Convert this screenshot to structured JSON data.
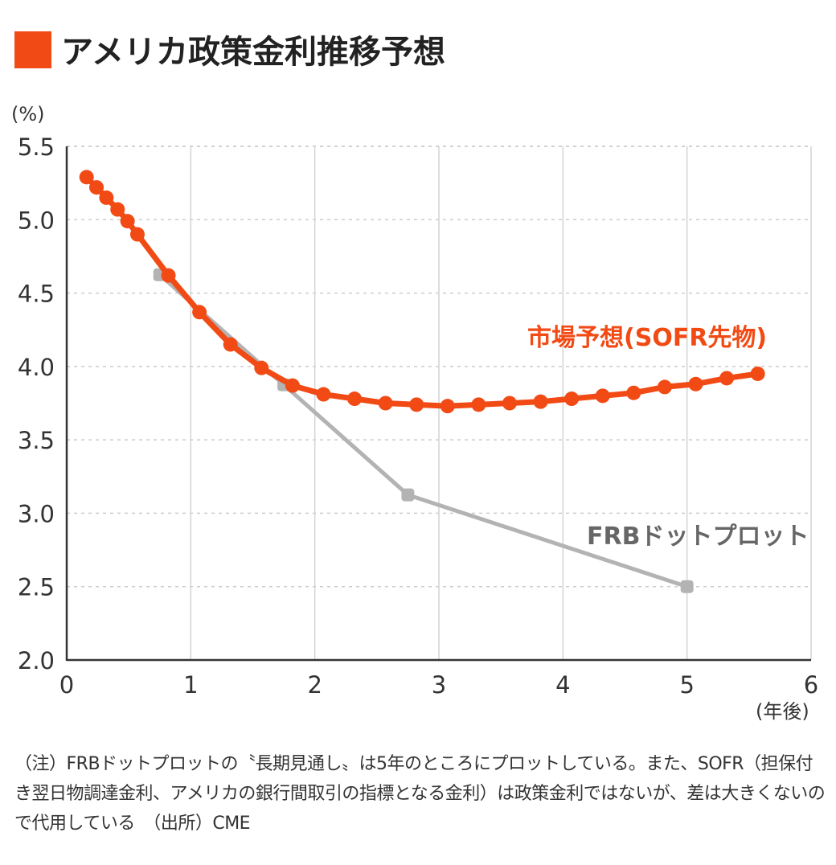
{
  "chart_data": {
    "type": "line",
    "title": "アメリカ政策金利推移予想",
    "ylabel": "(%)",
    "xlabel": "(年後)",
    "xlim": [
      0,
      6
    ],
    "ylim": [
      2.0,
      5.5
    ],
    "xticks": [
      "0",
      "1",
      "2",
      "3",
      "4",
      "5",
      "6"
    ],
    "yticks": [
      "5.5",
      "5.0",
      "4.5",
      "4.0",
      "3.5",
      "3.0",
      "2.5",
      "2.0"
    ],
    "grid": true,
    "series": [
      {
        "name": "FRBドットプロット",
        "color": "#b3b3b3",
        "label_color": "#666666",
        "x": [
          0.75,
          1.75,
          2.75,
          5.0
        ],
        "y": [
          4.625,
          3.875,
          3.125,
          2.5
        ]
      },
      {
        "name": "市場予想(SOFR先物)",
        "color": "#f24a14",
        "label_color": "#f24a14",
        "x": [
          0.16,
          0.24,
          0.32,
          0.41,
          0.49,
          0.57,
          0.82,
          1.07,
          1.32,
          1.57,
          1.82,
          2.07,
          2.32,
          2.57,
          2.82,
          3.07,
          3.32,
          3.57,
          3.82,
          4.07,
          4.32,
          4.57,
          4.82,
          5.07,
          5.32,
          5.57
        ],
        "y": [
          5.29,
          5.22,
          5.15,
          5.07,
          4.99,
          4.9,
          4.62,
          4.37,
          4.15,
          3.99,
          3.87,
          3.81,
          3.78,
          3.75,
          3.74,
          3.73,
          3.74,
          3.75,
          3.76,
          3.78,
          3.8,
          3.82,
          3.86,
          3.88,
          3.92,
          3.95
        ]
      }
    ]
  },
  "note": "（注）FRBドットプロットの〝長期見通し〟は5年のところにプロットしている。また、SOFR（担保付き翌日物調達金利、アメリカの銀行間取引の指標となる金利）は政策金利ではないが、差は大きくないので代用している　（出所）CME",
  "accent_color": "#f24a14"
}
